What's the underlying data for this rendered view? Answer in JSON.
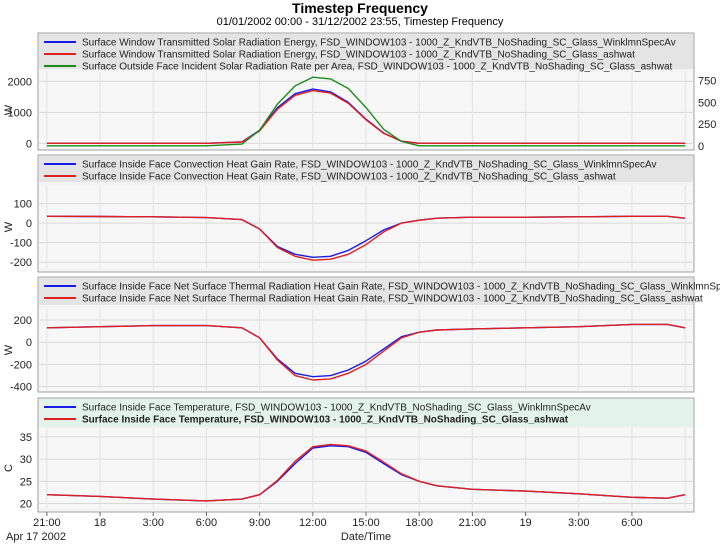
{
  "header": {
    "title": "Timestep Frequency",
    "subtitle": "01/01/2002 00:00 - 31/12/2002 23:55, Timestep Frequency"
  },
  "colors": {
    "blue": "#1a1ae6",
    "red": "#e02020",
    "green": "#1e8a1e",
    "panel_bg": "#ebebeb",
    "legend_bg": "#e4e4e4"
  },
  "xaxis": {
    "label": "Date/Time",
    "date_label": "Apr 17 2002",
    "tick_labels": [
      "21:00",
      "18",
      "3:00",
      "6:00",
      "9:00",
      "12:00",
      "15:00",
      "18:00",
      "21:00",
      "19",
      "3:00",
      "6:00"
    ]
  },
  "chart_data": [
    {
      "type": "line",
      "ylabel_left": "W",
      "left_ticks": [
        "2000",
        "1000",
        "0"
      ],
      "right_ticks": [
        "750",
        "500",
        "250",
        "0"
      ],
      "ylim": [
        -150,
        2300
      ],
      "ylim_right": [
        -25,
        850
      ],
      "x": [
        -3,
        6,
        8,
        9,
        10,
        11,
        12,
        13,
        14,
        15,
        16,
        17,
        18,
        19,
        20,
        21,
        33
      ],
      "series": [
        {
          "name": "Surface Window Transmitted Solar Radiation Energy, FSD_WINDOW103 - 1000_Z_KndVTB_NoShading_SC_Glass_WinklmnSpecAv",
          "color": "blue",
          "values": [
            0,
            0,
            50,
            420,
            1150,
            1600,
            1750,
            1660,
            1320,
            780,
            330,
            70,
            0,
            0,
            0,
            0,
            0
          ]
        },
        {
          "name": "Surface Window Transmitted Solar Radiation Energy, FSD_WINDOW103 - 1000_Z_KndVTB_NoShading_SC_Glass_ashwat",
          "color": "red",
          "values": [
            0,
            0,
            45,
            400,
            1100,
            1550,
            1700,
            1620,
            1290,
            760,
            320,
            70,
            0,
            0,
            0,
            0,
            0
          ]
        },
        {
          "name": "Surface Outside Face Incident Solar Radiation Rate per Area, FSD_WINDOW103 - 1000_Z_KndVTB_NoShading_SC_Glass_ashwat",
          "color": "green",
          "axis": "right",
          "values": [
            0,
            0,
            20,
            180,
            480,
            690,
            790,
            770,
            660,
            440,
            190,
            50,
            0,
            0,
            0,
            0,
            0
          ]
        }
      ]
    },
    {
      "type": "line",
      "ylabel_left": "W",
      "left_ticks": [
        "100",
        "0",
        "-100",
        "-200"
      ],
      "ylim": [
        -230,
        190
      ],
      "x": [
        -3,
        0,
        3,
        6,
        8,
        9,
        10,
        11,
        12,
        13,
        14,
        15,
        16,
        17,
        18,
        19,
        21,
        24,
        27,
        30,
        32,
        33
      ],
      "series": [
        {
          "name": "Surface Inside Face Convection Heat Gain Rate, FSD_WINDOW103 - 1000_Z_KndVTB_NoShading_SC_Glass_WinklmnSpecAv",
          "color": "blue",
          "values": [
            35,
            34,
            32,
            28,
            18,
            -30,
            -120,
            -160,
            -175,
            -170,
            -140,
            -90,
            -35,
            0,
            15,
            25,
            30,
            30,
            32,
            35,
            35,
            25
          ]
        },
        {
          "name": "Surface Inside Face Convection Heat Gain Rate, FSD_WINDOW103 - 1000_Z_KndVTB_NoShading_SC_Glass_ashwat",
          "color": "red",
          "values": [
            35,
            34,
            32,
            28,
            18,
            -30,
            -125,
            -170,
            -190,
            -185,
            -160,
            -110,
            -45,
            0,
            15,
            25,
            30,
            30,
            32,
            35,
            35,
            25
          ]
        }
      ]
    },
    {
      "type": "line",
      "ylabel_left": "W",
      "left_ticks": [
        "200",
        "0",
        "-200",
        "-400"
      ],
      "ylim": [
        -430,
        290
      ],
      "x": [
        -3,
        0,
        3,
        6,
        8,
        9,
        10,
        11,
        12,
        13,
        14,
        15,
        16,
        17,
        18,
        19,
        21,
        24,
        27,
        30,
        32,
        33
      ],
      "series": [
        {
          "name": "Surface Inside Face Net Surface Thermal Radiation Heat Gain Rate, FSD_WINDOW103 - 1000_Z_KndVTB_NoShading_SC_Glass_WinklmnSpecAv",
          "color": "blue",
          "values": [
            130,
            140,
            150,
            150,
            130,
            40,
            -150,
            -280,
            -310,
            -300,
            -250,
            -170,
            -60,
            50,
            90,
            110,
            120,
            130,
            140,
            160,
            160,
            130
          ]
        },
        {
          "name": "Surface Inside Face Net Surface Thermal Radiation Heat Gain Rate, FSD_WINDOW103 - 1000_Z_KndVTB_NoShading_SC_Glass_ashwat",
          "color": "red",
          "values": [
            130,
            140,
            150,
            150,
            130,
            40,
            -160,
            -300,
            -340,
            -330,
            -280,
            -200,
            -80,
            40,
            90,
            110,
            120,
            130,
            140,
            160,
            160,
            130
          ]
        }
      ]
    },
    {
      "type": "line",
      "ylabel_left": "C",
      "left_ticks": [
        "35",
        "30",
        "25",
        "20"
      ],
      "ylim": [
        19,
        37
      ],
      "x": [
        -3,
        0,
        3,
        6,
        8,
        9,
        10,
        11,
        12,
        13,
        14,
        15,
        16,
        17,
        18,
        19,
        21,
        24,
        27,
        30,
        32,
        33
      ],
      "series": [
        {
          "name": "Surface Inside Face Temperature, FSD_WINDOW103 - 1000_Z_KndVTB_NoShading_SC_Glass_WinklmnSpecAv",
          "color": "blue",
          "values": [
            22,
            21.6,
            21,
            20.6,
            21,
            22,
            25,
            29,
            32.5,
            33,
            32.8,
            31.5,
            29,
            26.5,
            25,
            24,
            23.2,
            22.8,
            22.2,
            21.4,
            21.2,
            22
          ]
        },
        {
          "name": "Surface Inside Face Temperature, FSD_WINDOW103 - 1000_Z_KndVTB_NoShading_SC_Glass_ashwat",
          "color": "red",
          "values": [
            22,
            21.6,
            21,
            20.6,
            21,
            22,
            25.2,
            29.5,
            32.8,
            33.3,
            33,
            31.8,
            29.3,
            26.7,
            25,
            24,
            23.2,
            22.8,
            22.2,
            21.4,
            21.2,
            22
          ]
        }
      ]
    }
  ]
}
